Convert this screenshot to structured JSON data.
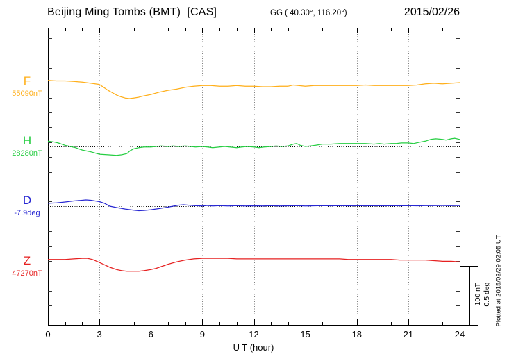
{
  "header": {
    "title": "Beijing Ming Tombs (BMT)  [CAS]",
    "coordinates": "GG ( 40.30°, 116.20°)",
    "date": "2015/02/26"
  },
  "footer": {
    "plotted_at": "Plotted at 2015/03/29 02:05 UT"
  },
  "chart_data": {
    "type": "line",
    "title": "Beijing Ming Tombs (BMT) [CAS] magnetogram for 2015/02/26",
    "xlabel": "U T (hour)",
    "x_range": [
      0,
      24
    ],
    "x_ticks": [
      0,
      3,
      6,
      9,
      12,
      15,
      18,
      21,
      24
    ],
    "x_minor_tick_step": 1,
    "gridline_hours": [
      3,
      6,
      9,
      12,
      15,
      18,
      21
    ],
    "grid": "dotted vertical gridlines every 3 h; dotted horizontal baseline per component",
    "legend_position": "left margin component labels",
    "scale_bar": {
      "label_nt": "100 nT",
      "label_deg": "0.5 deg",
      "nt_per_bar": 100,
      "deg_per_bar": 0.5
    },
    "series": [
      {
        "id": "F",
        "name": "F",
        "value_label": "55090nT",
        "unit": "nT",
        "baseline_value": 55090,
        "color": "#FFAF1A",
        "points": [
          [
            0,
            55101
          ],
          [
            0.5,
            55100
          ],
          [
            1,
            55100
          ],
          [
            1.5,
            55099
          ],
          [
            2,
            55098
          ],
          [
            2.5,
            55096
          ],
          [
            3,
            55094
          ],
          [
            3.25,
            55089
          ],
          [
            3.5,
            55084
          ],
          [
            3.75,
            55080
          ],
          [
            4,
            55076
          ],
          [
            4.25,
            55073
          ],
          [
            4.5,
            55071
          ],
          [
            4.75,
            55070
          ],
          [
            5,
            55071
          ],
          [
            5.25,
            55072
          ],
          [
            5.5,
            55074
          ],
          [
            6,
            55077
          ],
          [
            6.5,
            55081
          ],
          [
            7,
            55084
          ],
          [
            7.5,
            55086
          ],
          [
            8,
            55089
          ],
          [
            8.5,
            55091
          ],
          [
            9,
            55092
          ],
          [
            9.5,
            55092
          ],
          [
            10,
            55091
          ],
          [
            10.5,
            55091
          ],
          [
            11,
            55092
          ],
          [
            11.5,
            55091
          ],
          [
            12,
            55091
          ],
          [
            12.5,
            55090
          ],
          [
            13,
            55090
          ],
          [
            13.5,
            55091
          ],
          [
            14,
            55091
          ],
          [
            14.3,
            55093
          ],
          [
            14.6,
            55092
          ],
          [
            15,
            55091
          ],
          [
            15.5,
            55092
          ],
          [
            16,
            55092
          ],
          [
            16.5,
            55092
          ],
          [
            17,
            55092
          ],
          [
            17.5,
            55092
          ],
          [
            18,
            55092
          ],
          [
            18.5,
            55093
          ],
          [
            19,
            55092
          ],
          [
            19.5,
            55092
          ],
          [
            20,
            55092
          ],
          [
            20.5,
            55092
          ],
          [
            21,
            55092
          ],
          [
            21.5,
            55093
          ],
          [
            22,
            55095
          ],
          [
            22.5,
            55096
          ],
          [
            23,
            55095
          ],
          [
            23.5,
            55096
          ],
          [
            24,
            55097
          ]
        ]
      },
      {
        "id": "H",
        "name": "H",
        "value_label": "28280nT",
        "unit": "nT",
        "baseline_value": 28280,
        "color": "#26CE42",
        "points": [
          [
            0,
            28289
          ],
          [
            0.3,
            28288
          ],
          [
            0.6,
            28286
          ],
          [
            1,
            28282
          ],
          [
            1.3,
            28280
          ],
          [
            1.6,
            28278
          ],
          [
            2,
            28274
          ],
          [
            2.5,
            28271
          ],
          [
            3,
            28267
          ],
          [
            3.5,
            28266
          ],
          [
            4,
            28265
          ],
          [
            4.3,
            28266
          ],
          [
            4.6,
            28268
          ],
          [
            4.8,
            28273
          ],
          [
            5,
            28276
          ],
          [
            5.3,
            28278
          ],
          [
            5.6,
            28279
          ],
          [
            6,
            28279
          ],
          [
            6.3,
            28280
          ],
          [
            6.6,
            28281
          ],
          [
            7,
            28280
          ],
          [
            7.3,
            28281
          ],
          [
            7.6,
            28280
          ],
          [
            8,
            28281
          ],
          [
            8.3,
            28280
          ],
          [
            8.6,
            28279
          ],
          [
            9,
            28280
          ],
          [
            9.3,
            28279
          ],
          [
            9.6,
            28278
          ],
          [
            10,
            28279
          ],
          [
            10.3,
            28280
          ],
          [
            10.6,
            28279
          ],
          [
            11,
            28278
          ],
          [
            11.3,
            28279
          ],
          [
            11.6,
            28280
          ],
          [
            12,
            28279
          ],
          [
            12.3,
            28278
          ],
          [
            12.6,
            28279
          ],
          [
            13,
            28280
          ],
          [
            13.3,
            28281
          ],
          [
            13.6,
            28280
          ],
          [
            14,
            28281
          ],
          [
            14.3,
            28284
          ],
          [
            14.5,
            28285
          ],
          [
            14.7,
            28282
          ],
          [
            15,
            28280
          ],
          [
            15.3,
            28281
          ],
          [
            15.6,
            28282
          ],
          [
            16,
            28284
          ],
          [
            16.5,
            28284
          ],
          [
            17,
            28285
          ],
          [
            17.5,
            28285
          ],
          [
            18,
            28285
          ],
          [
            18.5,
            28285
          ],
          [
            19,
            28284
          ],
          [
            19.3,
            28285
          ],
          [
            19.6,
            28284
          ],
          [
            20,
            28285
          ],
          [
            20.3,
            28285
          ],
          [
            20.6,
            28286
          ],
          [
            21,
            28286
          ],
          [
            21.3,
            28285
          ],
          [
            21.6,
            28287
          ],
          [
            22,
            28289
          ],
          [
            22.3,
            28292
          ],
          [
            22.6,
            28293
          ],
          [
            23,
            28292
          ],
          [
            23.2,
            28291
          ],
          [
            23.5,
            28293
          ],
          [
            23.7,
            28294
          ],
          [
            24,
            28292
          ]
        ]
      },
      {
        "id": "D",
        "name": "D",
        "value_label": "-7.9deg",
        "unit": "deg",
        "baseline_value": -7.9,
        "color": "#2828D2",
        "points": [
          [
            0,
            -7.876
          ],
          [
            0.5,
            -7.872
          ],
          [
            1,
            -7.865
          ],
          [
            1.5,
            -7.856
          ],
          [
            2,
            -7.85
          ],
          [
            2.2,
            -7.847
          ],
          [
            2.5,
            -7.85
          ],
          [
            3,
            -7.862
          ],
          [
            3.3,
            -7.876
          ],
          [
            3.6,
            -7.9
          ],
          [
            4,
            -7.912
          ],
          [
            4.5,
            -7.924
          ],
          [
            5,
            -7.934
          ],
          [
            5.3,
            -7.938
          ],
          [
            5.6,
            -7.936
          ],
          [
            6,
            -7.93
          ],
          [
            6.5,
            -7.92
          ],
          [
            7,
            -7.908
          ],
          [
            7.3,
            -7.9
          ],
          [
            7.6,
            -7.892
          ],
          [
            7.9,
            -7.888
          ],
          [
            8.2,
            -7.892
          ],
          [
            8.5,
            -7.896
          ],
          [
            9,
            -7.898
          ],
          [
            9.3,
            -7.894
          ],
          [
            9.6,
            -7.898
          ],
          [
            10,
            -7.896
          ],
          [
            10.5,
            -7.898
          ],
          [
            11,
            -7.896
          ],
          [
            11.5,
            -7.898
          ],
          [
            12,
            -7.897
          ],
          [
            12.5,
            -7.898
          ],
          [
            13,
            -7.896
          ],
          [
            13.5,
            -7.898
          ],
          [
            14,
            -7.897
          ],
          [
            14.5,
            -7.896
          ],
          [
            15,
            -7.898
          ],
          [
            15.5,
            -7.897
          ],
          [
            16,
            -7.896
          ],
          [
            16.5,
            -7.897
          ],
          [
            17,
            -7.896
          ],
          [
            17.5,
            -7.897
          ],
          [
            18,
            -7.896
          ],
          [
            18.5,
            -7.897
          ],
          [
            19,
            -7.896
          ],
          [
            19.5,
            -7.897
          ],
          [
            20,
            -7.896
          ],
          [
            20.5,
            -7.897
          ],
          [
            21,
            -7.896
          ],
          [
            21.5,
            -7.897
          ],
          [
            22,
            -7.896
          ],
          [
            22.5,
            -7.896
          ],
          [
            23,
            -7.895
          ],
          [
            23.5,
            -7.896
          ],
          [
            24,
            -7.895
          ]
        ]
      },
      {
        "id": "Z",
        "name": "Z",
        "value_label": "47270nT",
        "unit": "nT",
        "baseline_value": 47270,
        "color": "#E62020",
        "points": [
          [
            0,
            47282
          ],
          [
            0.5,
            47282
          ],
          [
            1,
            47282
          ],
          [
            1.5,
            47283
          ],
          [
            2,
            47284
          ],
          [
            2.3,
            47284
          ],
          [
            2.6,
            47282
          ],
          [
            3,
            47277
          ],
          [
            3.3,
            47273
          ],
          [
            3.6,
            47269
          ],
          [
            4,
            47265
          ],
          [
            4.3,
            47263
          ],
          [
            4.6,
            47262
          ],
          [
            5,
            47262
          ],
          [
            5.3,
            47262
          ],
          [
            5.6,
            47263
          ],
          [
            6,
            47265
          ],
          [
            6.3,
            47267
          ],
          [
            6.6,
            47270
          ],
          [
            7,
            47274
          ],
          [
            7.5,
            47278
          ],
          [
            8,
            47281
          ],
          [
            8.5,
            47283
          ],
          [
            9,
            47284
          ],
          [
            9.5,
            47284
          ],
          [
            10,
            47284
          ],
          [
            10.5,
            47284
          ],
          [
            11,
            47283
          ],
          [
            11.5,
            47283
          ],
          [
            12,
            47283
          ],
          [
            12.5,
            47283
          ],
          [
            13,
            47283
          ],
          [
            13.5,
            47283
          ],
          [
            14,
            47283
          ],
          [
            14.5,
            47283
          ],
          [
            15,
            47283
          ],
          [
            15.5,
            47283
          ],
          [
            16,
            47283
          ],
          [
            16.5,
            47283
          ],
          [
            17,
            47283
          ],
          [
            17.5,
            47282
          ],
          [
            18,
            47282
          ],
          [
            18.5,
            47282
          ],
          [
            19,
            47282
          ],
          [
            19.5,
            47282
          ],
          [
            20,
            47282
          ],
          [
            20.5,
            47281
          ],
          [
            21,
            47281
          ],
          [
            21.5,
            47281
          ],
          [
            22,
            47281
          ],
          [
            22.5,
            47280
          ],
          [
            23,
            47279
          ],
          [
            23.5,
            47279
          ],
          [
            24,
            47278
          ]
        ]
      }
    ]
  }
}
